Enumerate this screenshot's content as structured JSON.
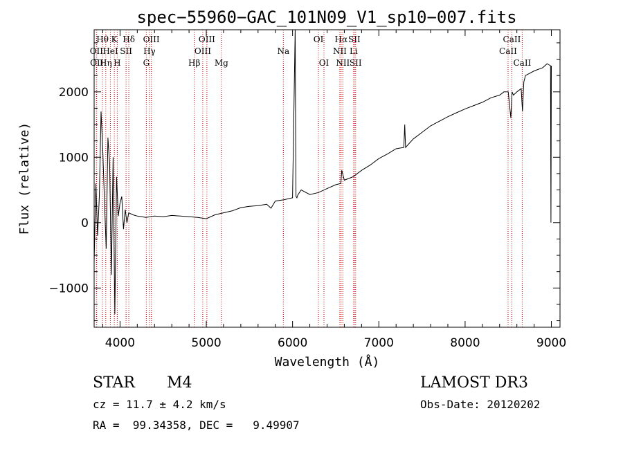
{
  "chart_data": {
    "type": "line",
    "title": "spec−55960−GAC_101N09_V1_sp10−007.fits",
    "xlabel": "Wavelength (Å)",
    "ylabel": "Flux (relative)",
    "xlim": [
      3700,
      9100
    ],
    "ylim": [
      -1600,
      2950
    ],
    "xticks": [
      4000,
      5000,
      6000,
      7000,
      8000,
      9000
    ],
    "yticks": [
      -1000,
      0,
      1000,
      2000
    ],
    "xtick_labels": [
      "4000",
      "5000",
      "6000",
      "7000",
      "8000",
      "9000"
    ],
    "ytick_labels": [
      "−1000",
      "0",
      "1000",
      "2000"
    ],
    "series": [
      {
        "name": "flux",
        "x": [
          3700,
          3720,
          3740,
          3760,
          3780,
          3800,
          3820,
          3840,
          3860,
          3880,
          3900,
          3920,
          3940,
          3960,
          3980,
          4000,
          4020,
          4040,
          4060,
          4080,
          4100,
          4150,
          4200,
          4300,
          4400,
          4500,
          4600,
          4700,
          4800,
          4900,
          5000,
          5100,
          5200,
          5300,
          5400,
          5500,
          5600,
          5700,
          5750,
          5800,
          5900,
          6000,
          6030,
          6040,
          6050,
          6060,
          6100,
          6200,
          6300,
          6400,
          6500,
          6560,
          6570,
          6600,
          6700,
          6800,
          6900,
          7000,
          7100,
          7200,
          7290,
          7300,
          7310,
          7400,
          7500,
          7600,
          7700,
          7800,
          7900,
          8000,
          8100,
          8200,
          8300,
          8400,
          8450,
          8500,
          8530,
          8545,
          8560,
          8600,
          8650,
          8665,
          8680,
          8700,
          8800,
          8900,
          8950,
          8990,
          8995,
          9000
        ],
        "y": [
          -600,
          600,
          -200,
          400,
          1700,
          1100,
          300,
          -400,
          1300,
          900,
          -800,
          1000,
          -1400,
          700,
          100,
          300,
          400,
          -100,
          200,
          0,
          150,
          120,
          100,
          80,
          100,
          90,
          110,
          100,
          90,
          80,
          60,
          120,
          150,
          180,
          230,
          250,
          260,
          280,
          220,
          330,
          350,
          380,
          2950,
          400,
          380,
          420,
          500,
          430,
          460,
          520,
          580,
          600,
          800,
          650,
          700,
          800,
          880,
          980,
          1050,
          1130,
          1150,
          1500,
          1150,
          1280,
          1380,
          1480,
          1550,
          1620,
          1680,
          1740,
          1790,
          1840,
          1910,
          1950,
          2000,
          2000,
          1600,
          2000,
          1950,
          2000,
          2050,
          1700,
          2150,
          2250,
          2320,
          2370,
          2430,
          2400,
          0,
          2400
        ]
      }
    ],
    "line_markers": [
      {
        "label": "Hθ",
        "x": 3797,
        "row": 1
      },
      {
        "label": "OII",
        "x": 3727,
        "row": 2
      },
      {
        "label": "OII",
        "x": 3730,
        "row": 3
      },
      {
        "label": "Hη",
        "x": 3835,
        "row": 3
      },
      {
        "label": "K",
        "x": 3934,
        "row": 1
      },
      {
        "label": "HeI",
        "x": 3889,
        "row": 2
      },
      {
        "label": "H",
        "x": 3968,
        "row": 3
      },
      {
        "label": "Hδ",
        "x": 4102,
        "row": 1
      },
      {
        "label": "SII",
        "x": 4070,
        "row": 2
      },
      {
        "label": "OIII",
        "x": 4363,
        "row": 1
      },
      {
        "label": "Hγ",
        "x": 4341,
        "row": 2
      },
      {
        "label": "G",
        "x": 4305,
        "row": 3
      },
      {
        "label": "Hβ",
        "x": 4861,
        "row": 3
      },
      {
        "label": "OIII",
        "x": 5007,
        "row": 1
      },
      {
        "label": "OIII",
        "x": 4959,
        "row": 2
      },
      {
        "label": "Mg",
        "x": 5175,
        "row": 3
      },
      {
        "label": "Na",
        "x": 5893,
        "row": 2
      },
      {
        "label": "OI",
        "x": 6300,
        "row": 1
      },
      {
        "label": "OI",
        "x": 6364,
        "row": 3
      },
      {
        "label": "Hα",
        "x": 6563,
        "row": 1
      },
      {
        "label": "NII",
        "x": 6548,
        "row": 2
      },
      {
        "label": "NII",
        "x": 6583,
        "row": 3
      },
      {
        "label": "SII",
        "x": 6716,
        "row": 1
      },
      {
        "label": "Li",
        "x": 6708,
        "row": 2
      },
      {
        "label": "SII",
        "x": 6731,
        "row": 3
      },
      {
        "label": "CaII",
        "x": 8542,
        "row": 1
      },
      {
        "label": "CaII",
        "x": 8498,
        "row": 2
      },
      {
        "label": "CaII",
        "x": 8662,
        "row": 3
      }
    ]
  },
  "info": {
    "object_class": "STAR",
    "subclass": "M4",
    "survey": "LAMOST DR3",
    "redshift": "cz = 11.7 ± 4.2 km/s",
    "obs_date": "Obs-Date: 20120202",
    "coords": "RA =  99.34358, DEC =   9.49907"
  }
}
